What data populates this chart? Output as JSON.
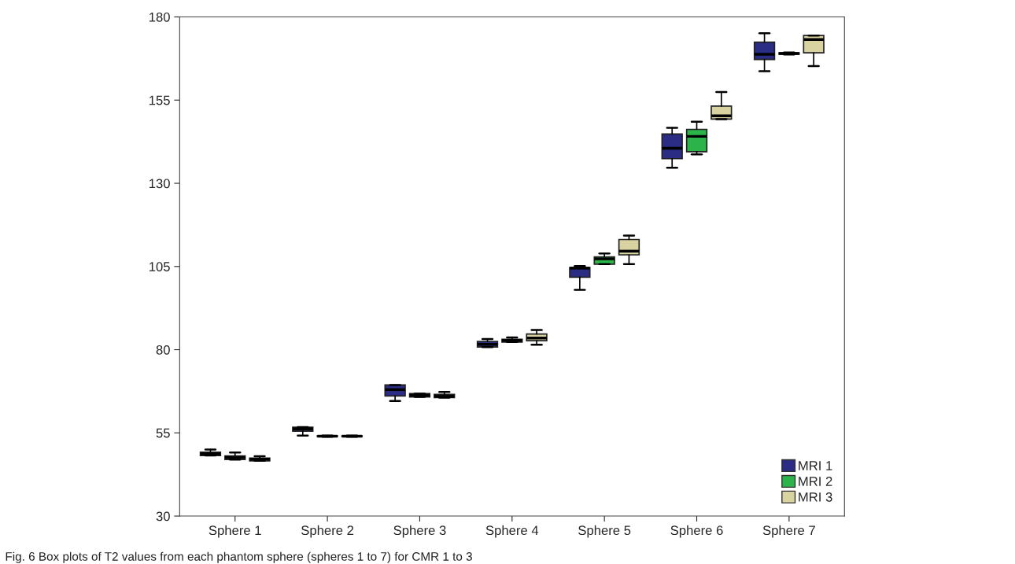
{
  "chart_data": {
    "type": "box",
    "categories": [
      "Sphere 1",
      "Sphere 2",
      "Sphere 3",
      "Sphere 4",
      "Sphere 5",
      "Sphere 6",
      "Sphere 7"
    ],
    "ylim": [
      30,
      180
    ],
    "yticks": [
      30,
      55,
      80,
      105,
      130,
      155,
      180
    ],
    "grid": false,
    "legend": "bottom right",
    "series": [
      {
        "name": "MRI 1",
        "color": "#2b2d84",
        "boxes": [
          {
            "low": 48.2,
            "q1": 48.2,
            "median": 48.7,
            "q3": 49.2,
            "high": 50.0
          },
          {
            "low": 54.2,
            "q1": 55.5,
            "median": 56.2,
            "q3": 56.7,
            "high": 56.7
          },
          {
            "low": 64.6,
            "q1": 66.1,
            "median": 68.0,
            "q3": 69.4,
            "high": 69.4
          },
          {
            "low": 80.8,
            "q1": 80.8,
            "median": 81.6,
            "q3": 82.5,
            "high": 83.2
          },
          {
            "low": 98.0,
            "q1": 101.8,
            "median": 104.5,
            "q3": 104.7,
            "high": 105.1
          },
          {
            "low": 134.7,
            "q1": 137.4,
            "median": 140.5,
            "q3": 144.8,
            "high": 146.7
          },
          {
            "low": 163.7,
            "q1": 167.2,
            "median": 168.8,
            "q3": 172.4,
            "high": 175.1
          }
        ]
      },
      {
        "name": "MRI 2",
        "color": "#2cb34a",
        "boxes": [
          {
            "low": 47.0,
            "q1": 47.0,
            "median": 47.6,
            "q3": 48.1,
            "high": 49.1
          },
          {
            "low": 53.8,
            "q1": 53.9,
            "median": 54.0,
            "q3": 54.1,
            "high": 54.2
          },
          {
            "low": 65.8,
            "q1": 65.8,
            "median": 66.3,
            "q3": 66.8,
            "high": 66.8
          },
          {
            "low": 82.3,
            "q1": 82.3,
            "median": 82.8,
            "q3": 83.1,
            "high": 83.7
          },
          {
            "low": 105.7,
            "q1": 105.7,
            "median": 107.3,
            "q3": 107.9,
            "high": 108.9
          },
          {
            "low": 138.7,
            "q1": 139.5,
            "median": 144.1,
            "q3": 146.2,
            "high": 148.5
          },
          {
            "low": 168.7,
            "q1": 168.8,
            "median": 169.0,
            "q3": 169.2,
            "high": 169.3
          }
        ]
      },
      {
        "name": "MRI 3",
        "color": "#d8d3a0",
        "boxes": [
          {
            "low": 46.6,
            "q1": 46.6,
            "median": 47.1,
            "q3": 47.4,
            "high": 48.0
          },
          {
            "low": 53.8,
            "q1": 53.9,
            "median": 54.0,
            "q3": 54.1,
            "high": 54.2
          },
          {
            "low": 65.6,
            "q1": 65.6,
            "median": 66.0,
            "q3": 66.6,
            "high": 67.3
          },
          {
            "low": 81.5,
            "q1": 82.7,
            "median": 83.5,
            "q3": 84.7,
            "high": 85.9
          },
          {
            "low": 105.7,
            "q1": 108.5,
            "median": 109.6,
            "q3": 113.1,
            "high": 114.3
          },
          {
            "low": 149.3,
            "q1": 149.3,
            "median": 150.3,
            "q3": 153.2,
            "high": 157.4
          },
          {
            "low": 165.2,
            "q1": 169.2,
            "median": 173.2,
            "q3": 174.4,
            "high": 174.4
          }
        ]
      }
    ],
    "annotations": [
      "Fig. 6 Box plots of T2 values from each phantom sphere (spheres 1 to 7) for CMR 1 to 3"
    ]
  }
}
